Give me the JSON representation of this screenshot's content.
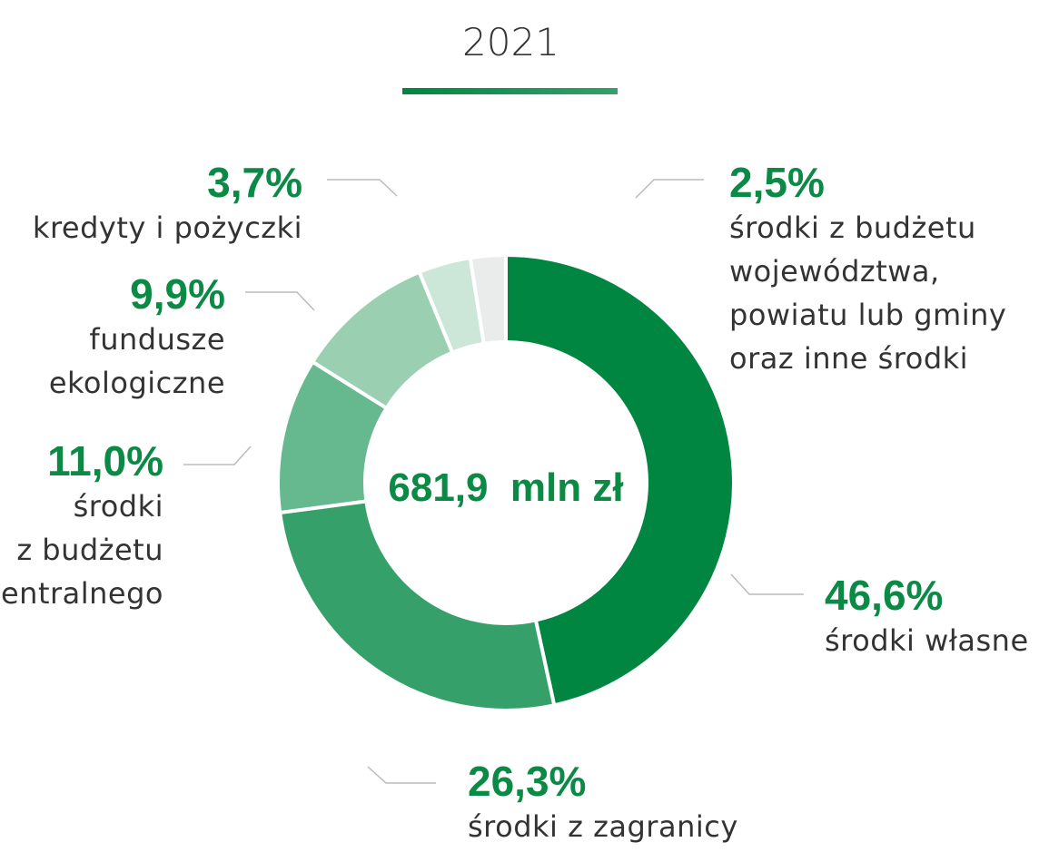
{
  "chart_data": {
    "type": "donut",
    "title": "2021",
    "center_label": "681,9  mln zł",
    "categories": [
      "środki własne",
      "środki z zagranicy",
      "środki\nz budżetu\ncentralnego",
      "fundusze\nekologiczne",
      "kredyty i pożyczki",
      "środki z budżetu\nwojewództwa,\npowiatu lub gminy\noraz inne środki"
    ],
    "values": [
      46.6,
      26.3,
      11.0,
      9.9,
      3.7,
      2.5
    ],
    "value_labels": [
      "46,6%",
      "26,3%",
      "11,0%",
      "9,9%",
      "3,7%",
      "2,5%"
    ],
    "colors": [
      "#008641",
      "#36a06a",
      "#66b88e",
      "#9acfb2",
      "#cce6d8",
      "#e9ecea"
    ]
  }
}
